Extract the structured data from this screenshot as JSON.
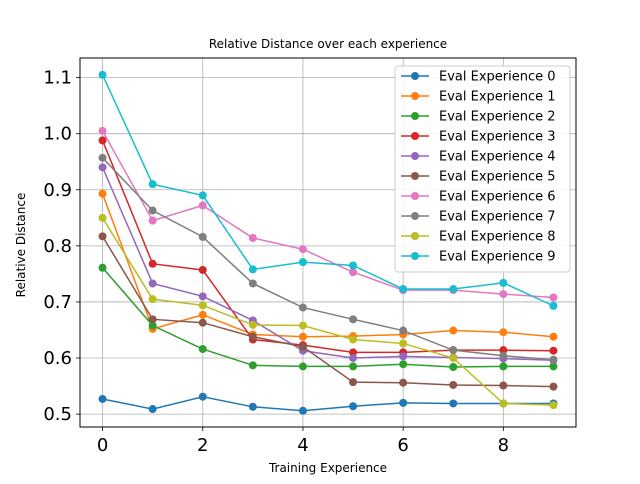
{
  "chart_data": {
    "type": "line",
    "title": "Relative Distance over each experience",
    "xlabel": "Training Experience",
    "ylabel": "Relative Distance",
    "xlim": [
      -0.45,
      9.45
    ],
    "ylim": [
      0.477,
      1.135
    ],
    "xticks": [
      0,
      2,
      4,
      6,
      8
    ],
    "yticks": [
      0.5,
      0.6,
      0.7,
      0.8,
      0.9,
      1.0,
      1.1
    ],
    "xtick_labels": [
      "0",
      "2",
      "4",
      "6",
      "8"
    ],
    "ytick_labels": [
      "0.5",
      "0.6",
      "0.7",
      "0.8",
      "0.9",
      "1.0",
      "1.1"
    ],
    "grid": true,
    "legend_position": "top-right",
    "x": [
      0,
      1,
      2,
      3,
      4,
      5,
      6,
      7,
      8,
      9
    ],
    "series": [
      {
        "name": "Eval Experience 0",
        "color": "#1f77b4",
        "values": [
          0.527,
          0.509,
          0.531,
          0.513,
          0.506,
          0.514,
          0.52,
          0.519,
          0.519,
          0.519
        ]
      },
      {
        "name": "Eval Experience 1",
        "color": "#ff7f0e",
        "values": [
          0.893,
          0.652,
          0.677,
          0.642,
          0.638,
          0.639,
          0.642,
          0.649,
          0.646,
          0.638
        ]
      },
      {
        "name": "Eval Experience 2",
        "color": "#2ca02c",
        "values": [
          0.761,
          0.658,
          0.616,
          0.587,
          0.585,
          0.585,
          0.589,
          0.584,
          0.585,
          0.585
        ]
      },
      {
        "name": "Eval Experience 3",
        "color": "#d62728",
        "values": [
          0.988,
          0.768,
          0.757,
          0.633,
          0.623,
          0.61,
          0.61,
          0.614,
          0.614,
          0.613
        ]
      },
      {
        "name": "Eval Experience 4",
        "color": "#9467bd",
        "values": [
          0.94,
          0.733,
          0.71,
          0.667,
          0.613,
          0.6,
          0.603,
          0.601,
          0.599,
          0.596
        ]
      },
      {
        "name": "Eval Experience 5",
        "color": "#8c564b",
        "values": [
          0.817,
          0.669,
          0.663,
          0.638,
          0.62,
          0.557,
          0.556,
          0.552,
          0.551,
          0.549
        ]
      },
      {
        "name": "Eval Experience 6",
        "color": "#e377c2",
        "values": [
          1.005,
          0.845,
          0.872,
          0.814,
          0.794,
          0.753,
          0.721,
          0.721,
          0.714,
          0.708
        ]
      },
      {
        "name": "Eval Experience 7",
        "color": "#7f7f7f",
        "values": [
          0.957,
          0.863,
          0.816,
          0.733,
          0.69,
          0.669,
          0.649,
          0.614,
          0.604,
          0.597
        ]
      },
      {
        "name": "Eval Experience 8",
        "color": "#bcbd22",
        "values": [
          0.85,
          0.705,
          0.694,
          0.659,
          0.658,
          0.633,
          0.626,
          0.6,
          0.519,
          0.516
        ]
      },
      {
        "name": "Eval Experience 9",
        "color": "#17becf",
        "values": [
          1.105,
          0.91,
          0.89,
          0.758,
          0.771,
          0.765,
          0.723,
          0.723,
          0.734,
          0.693
        ]
      }
    ]
  }
}
